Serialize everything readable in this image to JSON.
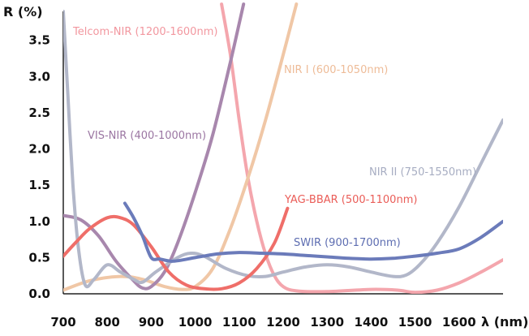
{
  "chart_data": {
    "type": "line",
    "ylabel": "R (%)",
    "xlabel": "λ (nm)",
    "xlim": [
      700,
      1700
    ],
    "ylim": [
      0,
      3.9
    ],
    "xticks": [
      "700",
      "800",
      "900",
      "1000",
      "1100",
      "1200",
      "1300",
      "1400",
      "1500",
      "1600"
    ],
    "yticks": [
      "0.0",
      "0.5",
      "1.0",
      "1.5",
      "2.0",
      "2.5",
      "3.0",
      "3.5"
    ],
    "grid": false,
    "series": [
      {
        "name": "Telcom-NIR (1200-1600nm)",
        "color": "#f4a6ad",
        "points": [
          [
            1060,
            4.0
          ],
          [
            1080,
            3.3
          ],
          [
            1100,
            2.4
          ],
          [
            1120,
            1.6
          ],
          [
            1140,
            1.0
          ],
          [
            1160,
            0.55
          ],
          [
            1180,
            0.25
          ],
          [
            1200,
            0.1
          ],
          [
            1230,
            0.04
          ],
          [
            1300,
            0.03
          ],
          [
            1400,
            0.06
          ],
          [
            1460,
            0.05
          ],
          [
            1500,
            0.02
          ],
          [
            1550,
            0.05
          ],
          [
            1600,
            0.15
          ],
          [
            1650,
            0.3
          ],
          [
            1700,
            0.47
          ]
        ]
      },
      {
        "name": "NIR I (600-1050nm)",
        "color": "#f0c7a6",
        "points": [
          [
            700,
            0.05
          ],
          [
            760,
            0.18
          ],
          [
            830,
            0.24
          ],
          [
            880,
            0.2
          ],
          [
            930,
            0.1
          ],
          [
            970,
            0.06
          ],
          [
            1000,
            0.1
          ],
          [
            1040,
            0.35
          ],
          [
            1080,
            0.9
          ],
          [
            1120,
            1.6
          ],
          [
            1160,
            2.4
          ],
          [
            1200,
            3.3
          ],
          [
            1230,
            4.0
          ]
        ]
      },
      {
        "name": "VIS-NIR (400-1000nm)",
        "color": "#a887ad",
        "points": [
          [
            700,
            1.08
          ],
          [
            740,
            1.02
          ],
          [
            780,
            0.8
          ],
          [
            820,
            0.45
          ],
          [
            860,
            0.18
          ],
          [
            880,
            0.08
          ],
          [
            900,
            0.1
          ],
          [
            930,
            0.3
          ],
          [
            960,
            0.7
          ],
          [
            1000,
            1.4
          ],
          [
            1040,
            2.2
          ],
          [
            1080,
            3.2
          ],
          [
            1110,
            4.0
          ]
        ]
      },
      {
        "name": "NIR II (750-1550nm)",
        "color": "#b2b7c9",
        "points": [
          [
            700,
            3.9
          ],
          [
            710,
            2.8
          ],
          [
            722,
            1.5
          ],
          [
            735,
            0.6
          ],
          [
            750,
            0.12
          ],
          [
            770,
            0.2
          ],
          [
            800,
            0.4
          ],
          [
            830,
            0.3
          ],
          [
            860,
            0.2
          ],
          [
            880,
            0.16
          ],
          [
            910,
            0.3
          ],
          [
            960,
            0.5
          ],
          [
            990,
            0.56
          ],
          [
            1020,
            0.52
          ],
          [
            1070,
            0.35
          ],
          [
            1120,
            0.25
          ],
          [
            1160,
            0.24
          ],
          [
            1200,
            0.3
          ],
          [
            1250,
            0.37
          ],
          [
            1300,
            0.4
          ],
          [
            1350,
            0.37
          ],
          [
            1400,
            0.3
          ],
          [
            1450,
            0.24
          ],
          [
            1480,
            0.26
          ],
          [
            1510,
            0.4
          ],
          [
            1550,
            0.7
          ],
          [
            1600,
            1.2
          ],
          [
            1650,
            1.8
          ],
          [
            1700,
            2.4
          ]
        ]
      },
      {
        "name": "YAG-BBAR (500-1100nm)",
        "color": "#ef6e69",
        "points": [
          [
            700,
            0.52
          ],
          [
            730,
            0.72
          ],
          [
            760,
            0.9
          ],
          [
            800,
            1.05
          ],
          [
            830,
            1.05
          ],
          [
            860,
            0.95
          ],
          [
            900,
            0.65
          ],
          [
            940,
            0.3
          ],
          [
            980,
            0.12
          ],
          [
            1020,
            0.07
          ],
          [
            1060,
            0.07
          ],
          [
            1100,
            0.15
          ],
          [
            1140,
            0.35
          ],
          [
            1180,
            0.7
          ],
          [
            1210,
            1.18
          ]
        ]
      },
      {
        "name": "SWIR (900-1700nm)",
        "color": "#6b7bba",
        "points": [
          [
            840,
            1.25
          ],
          [
            860,
            1.05
          ],
          [
            880,
            0.8
          ],
          [
            900,
            0.5
          ],
          [
            920,
            0.48
          ],
          [
            950,
            0.45
          ],
          [
            1000,
            0.5
          ],
          [
            1050,
            0.55
          ],
          [
            1100,
            0.57
          ],
          [
            1150,
            0.56
          ],
          [
            1200,
            0.55
          ],
          [
            1250,
            0.53
          ],
          [
            1300,
            0.51
          ],
          [
            1350,
            0.49
          ],
          [
            1400,
            0.48
          ],
          [
            1450,
            0.49
          ],
          [
            1500,
            0.52
          ],
          [
            1550,
            0.56
          ],
          [
            1600,
            0.62
          ],
          [
            1650,
            0.78
          ],
          [
            1700,
            1.0
          ]
        ]
      }
    ]
  }
}
